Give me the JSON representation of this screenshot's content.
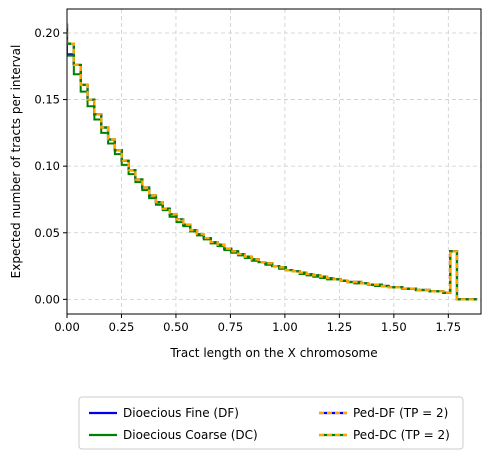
{
  "chart_data": {
    "type": "line",
    "xlabel": "Tract length on the X chromosome",
    "ylabel": "Expected number of tracts per interval",
    "xlim": [
      0,
      1.9
    ],
    "ylim": [
      -0.011,
      0.218
    ],
    "xticks": [
      0.0,
      0.25,
      0.5,
      0.75,
      1.0,
      1.25,
      1.5,
      1.75
    ],
    "xtick_labels": [
      "0.00",
      "0.25",
      "0.50",
      "0.75",
      "1.00",
      "1.25",
      "1.50",
      "1.75"
    ],
    "yticks": [
      0.0,
      0.05,
      0.1,
      0.15,
      0.2
    ],
    "ytick_labels": [
      "0.00",
      "0.05",
      "0.10",
      "0.15",
      "0.20"
    ],
    "grid": true,
    "legend_placement": "below",
    "step_width": 0.0314,
    "x": [
      0.0,
      0.0314,
      0.0628,
      0.0942,
      0.1256,
      0.157,
      0.1884,
      0.2198,
      0.2512,
      0.2826,
      0.314,
      0.3454,
      0.3768,
      0.4082,
      0.4396,
      0.471,
      0.5024,
      0.5338,
      0.5652,
      0.5966,
      0.628,
      0.6594,
      0.6908,
      0.7222,
      0.7536,
      0.785,
      0.8164,
      0.8478,
      0.8792,
      0.9106,
      0.942,
      0.9734,
      1.0048,
      1.0362,
      1.0676,
      1.099,
      1.1304,
      1.1618,
      1.1932,
      1.2246,
      1.256,
      1.2874,
      1.3188,
      1.3502,
      1.3816,
      1.413,
      1.4444,
      1.4758,
      1.5072,
      1.5386,
      1.57,
      1.6014,
      1.6328,
      1.6642,
      1.6956,
      1.727,
      1.7584,
      1.7898,
      1.8212,
      1.8526
    ],
    "series": [
      {
        "name": "Dioecious Fine (DF)",
        "color": "#0000ee",
        "style": "solid",
        "values": [
          0.184,
          0.176,
          0.161,
          0.15,
          0.139,
          0.129,
          0.12,
          0.112,
          0.104,
          0.097,
          0.09,
          0.084,
          0.078,
          0.073,
          0.068,
          0.064,
          0.06,
          0.056,
          0.052,
          0.049,
          0.046,
          0.043,
          0.041,
          0.038,
          0.036,
          0.034,
          0.032,
          0.03,
          0.028,
          0.027,
          0.025,
          0.024,
          0.022,
          0.021,
          0.02,
          0.019,
          0.018,
          0.017,
          0.016,
          0.015,
          0.014,
          0.013,
          0.013,
          0.012,
          0.011,
          0.011,
          0.01,
          0.009,
          0.009,
          0.008,
          0.008,
          0.007,
          0.007,
          0.006,
          0.006,
          0.005,
          0.036,
          0.0,
          0.0,
          0.0
        ]
      },
      {
        "name": "Dioecious Coarse (DC)",
        "color": "#008000",
        "style": "solid",
        "values": [
          0.183,
          0.169,
          0.156,
          0.145,
          0.135,
          0.125,
          0.117,
          0.109,
          0.101,
          0.094,
          0.088,
          0.082,
          0.076,
          0.071,
          0.067,
          0.062,
          0.058,
          0.055,
          0.051,
          0.048,
          0.045,
          0.042,
          0.04,
          0.037,
          0.035,
          0.033,
          0.031,
          0.029,
          0.028,
          0.026,
          0.025,
          0.023,
          0.022,
          0.021,
          0.019,
          0.018,
          0.017,
          0.016,
          0.015,
          0.015,
          0.014,
          0.013,
          0.012,
          0.012,
          0.011,
          0.01,
          0.01,
          0.009,
          0.009,
          0.008,
          0.008,
          0.007,
          0.007,
          0.006,
          0.006,
          0.005,
          0.036,
          0.0,
          0.0,
          0.0
        ]
      },
      {
        "name": "Ped-DF (TP = 2)",
        "color": "#0000ee",
        "dash_color": "#ffa500",
        "style": "dashed",
        "values": [
          0.192,
          0.176,
          0.161,
          0.15,
          0.139,
          0.129,
          0.12,
          0.112,
          0.104,
          0.097,
          0.09,
          0.084,
          0.078,
          0.073,
          0.068,
          0.064,
          0.06,
          0.056,
          0.052,
          0.049,
          0.046,
          0.043,
          0.041,
          0.038,
          0.036,
          0.034,
          0.032,
          0.03,
          0.028,
          0.027,
          0.025,
          0.024,
          0.022,
          0.021,
          0.02,
          0.019,
          0.018,
          0.017,
          0.016,
          0.015,
          0.014,
          0.013,
          0.013,
          0.012,
          0.011,
          0.011,
          0.01,
          0.009,
          0.009,
          0.008,
          0.008,
          0.007,
          0.007,
          0.006,
          0.006,
          0.005,
          0.036,
          0.0,
          0.0,
          0.0
        ]
      },
      {
        "name": "Ped-DC (TP = 2)",
        "color": "#008000",
        "dash_color": "#ffa500",
        "style": "dashed",
        "values": [
          0.192,
          0.176,
          0.161,
          0.15,
          0.139,
          0.129,
          0.12,
          0.112,
          0.104,
          0.097,
          0.09,
          0.084,
          0.078,
          0.073,
          0.068,
          0.064,
          0.06,
          0.056,
          0.052,
          0.049,
          0.046,
          0.043,
          0.041,
          0.038,
          0.036,
          0.034,
          0.032,
          0.03,
          0.028,
          0.027,
          0.025,
          0.024,
          0.022,
          0.021,
          0.02,
          0.019,
          0.018,
          0.017,
          0.016,
          0.015,
          0.014,
          0.013,
          0.013,
          0.012,
          0.011,
          0.011,
          0.01,
          0.009,
          0.009,
          0.008,
          0.008,
          0.007,
          0.007,
          0.006,
          0.006,
          0.005,
          0.036,
          0.0,
          0.0,
          0.0
        ]
      }
    ]
  }
}
